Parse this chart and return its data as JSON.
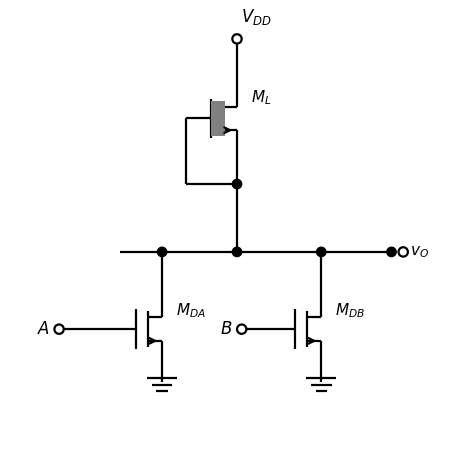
{
  "bg_color": "#ffffff",
  "line_color": "#000000",
  "line_width": 1.6,
  "gray_fill": "#808080",
  "vdd_label": "$V_{DD}$",
  "ml_label": "$M_L$",
  "mda_label": "$M_{DA}$",
  "mdb_label": "$M_{DB}$",
  "vo_label": "$v_O$",
  "a_label": "$A$",
  "b_label": "$B$",
  "xlim": [
    0,
    10
  ],
  "ylim": [
    0,
    10
  ]
}
